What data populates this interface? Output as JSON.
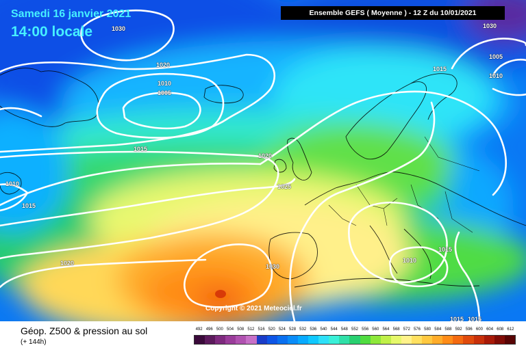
{
  "header": {
    "date": "Samedi 16 janvier 2021",
    "time": "14:00 locale",
    "model": "Ensemble GEFS  ( Moyenne )  -  12 Z du 10/01/2021"
  },
  "copyright": "Copyright © 2021 Meteociel.fr",
  "isobars": [
    {
      "text": "1030"
    },
    {
      "text": "1020"
    },
    {
      "text": "1010"
    },
    {
      "text": "1005"
    },
    {
      "text": "1015"
    },
    {
      "text": "1020"
    },
    {
      "text": "1025"
    },
    {
      "text": "1010"
    },
    {
      "text": "1015"
    },
    {
      "text": "1020"
    },
    {
      "text": "1030"
    },
    {
      "text": "1015"
    },
    {
      "text": "1010"
    },
    {
      "text": "1005"
    },
    {
      "text": "1030"
    },
    {
      "text": "1010"
    },
    {
      "text": "1015"
    },
    {
      "text": "1015"
    },
    {
      "text": "1015"
    }
  ],
  "legend": {
    "title": "Géop. Z500 & pression au sol",
    "subtitle": "(+ 144h)",
    "scale": [
      {
        "value": "492",
        "color": "#3a0a3a"
      },
      {
        "value": "496",
        "color": "#5c1a5c"
      },
      {
        "value": "500",
        "color": "#7e2a7e"
      },
      {
        "value": "504",
        "color": "#9a3c9a"
      },
      {
        "value": "508",
        "color": "#b052b0"
      },
      {
        "value": "512",
        "color": "#c770c7"
      },
      {
        "value": "516",
        "color": "#1a3cc8"
      },
      {
        "value": "520",
        "color": "#0e55e6"
      },
      {
        "value": "524",
        "color": "#0a70f0"
      },
      {
        "value": "528",
        "color": "#0a8cf8"
      },
      {
        "value": "532",
        "color": "#08aaff"
      },
      {
        "value": "536",
        "color": "#10c8ff"
      },
      {
        "value": "540",
        "color": "#2ee0f8"
      },
      {
        "value": "544",
        "color": "#3af0d8"
      },
      {
        "value": "548",
        "color": "#30e0a8"
      },
      {
        "value": "552",
        "color": "#28d070"
      },
      {
        "value": "556",
        "color": "#50dc40"
      },
      {
        "value": "560",
        "color": "#8ee83a"
      },
      {
        "value": "564",
        "color": "#c0f048"
      },
      {
        "value": "568",
        "color": "#e6f86a"
      },
      {
        "value": "572",
        "color": "#fff28a"
      },
      {
        "value": "576",
        "color": "#ffe060"
      },
      {
        "value": "580",
        "color": "#ffc840"
      },
      {
        "value": "584",
        "color": "#ffac2a"
      },
      {
        "value": "588",
        "color": "#ff8c18"
      },
      {
        "value": "592",
        "color": "#f46a10"
      },
      {
        "value": "596",
        "color": "#e04a0c"
      },
      {
        "value": "600",
        "color": "#c8300a"
      },
      {
        "value": "604",
        "color": "#a81a08"
      },
      {
        "value": "608",
        "color": "#800c06"
      },
      {
        "value": "612",
        "color": "#580404"
      }
    ]
  }
}
